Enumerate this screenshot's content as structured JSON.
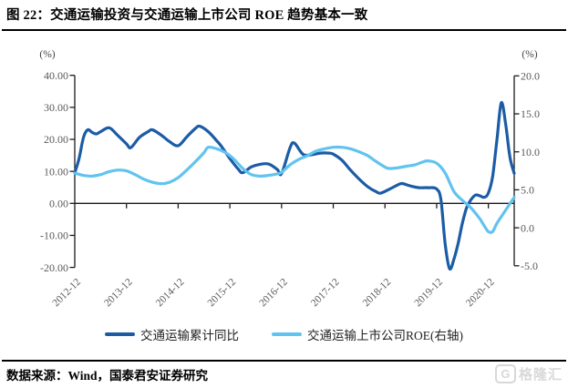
{
  "figure": {
    "title": "图 22：交通运输投资与交通运输上市公司 ROE 趋势基本一致",
    "source": "数据来源：Wind，国泰君安证券研究",
    "watermark": {
      "icon_letter": "G",
      "text": "格隆汇"
    }
  },
  "chart_data": {
    "type": "line",
    "title": "交通运输投资与交通运输上市公司ROE趋势基本一致",
    "legend_position": "bottom",
    "grid": false,
    "x_axis": {
      "tick_labels": [
        "2012-12",
        "2013-12",
        "2014-12",
        "2015-12",
        "2016-12",
        "2017-12",
        "2018-12",
        "2019-12",
        "2020-12"
      ],
      "months_per_tick": 12,
      "total_months": 102,
      "start": "2012-12",
      "end": "2021-06"
    },
    "left_axis": {
      "label": "(%)",
      "ticks": [
        40,
        30,
        20,
        10,
        0,
        -10,
        -20
      ],
      "min": -20,
      "max": 40,
      "decimals": 2
    },
    "right_axis": {
      "label": "(%)",
      "ticks": [
        20,
        15,
        10,
        5,
        0,
        -5
      ],
      "min": -5,
      "max": 20,
      "decimals": 1
    },
    "series": [
      {
        "name": "交通运输累计同比",
        "axis": "left",
        "color": "#1B5CA5",
        "points": [
          [
            0,
            9.6
          ],
          [
            1,
            14.0
          ],
          [
            2,
            20.5
          ],
          [
            3,
            23.0
          ],
          [
            4,
            22.2
          ],
          [
            5,
            21.7
          ],
          [
            6,
            22.4
          ],
          [
            8,
            23.6
          ],
          [
            10,
            21.2
          ],
          [
            12,
            18.6
          ],
          [
            13,
            17.4
          ],
          [
            15,
            20.6
          ],
          [
            17,
            22.4
          ],
          [
            18,
            23.0
          ],
          [
            20,
            21.4
          ],
          [
            22,
            19.3
          ],
          [
            24,
            18.0
          ],
          [
            26,
            20.8
          ],
          [
            28,
            23.4
          ],
          [
            29,
            24.1
          ],
          [
            31,
            22.4
          ],
          [
            33,
            19.5
          ],
          [
            34,
            17.9
          ],
          [
            36,
            14.0
          ],
          [
            38,
            10.6
          ],
          [
            39,
            9.6
          ],
          [
            41,
            11.4
          ],
          [
            43,
            12.2
          ],
          [
            45,
            12.3
          ],
          [
            47,
            10.6
          ],
          [
            48,
            9.3
          ],
          [
            50,
            17.5
          ],
          [
            51,
            18.8
          ],
          [
            53,
            15.3
          ],
          [
            55,
            15.2
          ],
          [
            57,
            15.7
          ],
          [
            59,
            15.7
          ],
          [
            60,
            15.4
          ],
          [
            62,
            13.5
          ],
          [
            64,
            10.4
          ],
          [
            66,
            7.6
          ],
          [
            68,
            5.2
          ],
          [
            70,
            3.6
          ],
          [
            71,
            3.2
          ],
          [
            73,
            4.4
          ],
          [
            75,
            5.8
          ],
          [
            76,
            6.2
          ],
          [
            78,
            5.4
          ],
          [
            80,
            4.9
          ],
          [
            82,
            4.9
          ],
          [
            84,
            4.5
          ],
          [
            85,
            1.0
          ],
          [
            86,
            -13.0
          ],
          [
            87,
            -20.4
          ],
          [
            88,
            -17.5
          ],
          [
            89,
            -12.4
          ],
          [
            90,
            -6.0
          ],
          [
            91,
            -1.2
          ],
          [
            92,
            1.2
          ],
          [
            93,
            2.6
          ],
          [
            94,
            2.4
          ],
          [
            95,
            1.9
          ],
          [
            96,
            3.2
          ],
          [
            97,
            8.5
          ],
          [
            98,
            20.0
          ],
          [
            99,
            31.4
          ],
          [
            100,
            25.0
          ],
          [
            101,
            14.5
          ],
          [
            102,
            9.4
          ]
        ]
      },
      {
        "name": "交通运输上市公司ROE(右轴)",
        "axis": "right",
        "color": "#61C3EF",
        "points": [
          [
            0,
            7.2
          ],
          [
            2,
            6.9
          ],
          [
            4,
            6.8
          ],
          [
            6,
            7.0
          ],
          [
            8,
            7.4
          ],
          [
            10,
            7.6
          ],
          [
            12,
            7.5
          ],
          [
            14,
            7.0
          ],
          [
            16,
            6.4
          ],
          [
            18,
            6.0
          ],
          [
            20,
            5.8
          ],
          [
            22,
            6.0
          ],
          [
            24,
            6.6
          ],
          [
            26,
            7.6
          ],
          [
            28,
            8.7
          ],
          [
            30,
            9.9
          ],
          [
            31,
            10.6
          ],
          [
            33,
            10.4
          ],
          [
            35,
            9.9
          ],
          [
            37,
            9.0
          ],
          [
            39,
            7.8
          ],
          [
            41,
            7.0
          ],
          [
            43,
            6.8
          ],
          [
            45,
            6.9
          ],
          [
            47,
            7.1
          ],
          [
            48,
            7.3
          ],
          [
            50,
            8.3
          ],
          [
            52,
            9.0
          ],
          [
            54,
            9.5
          ],
          [
            56,
            10.1
          ],
          [
            58,
            10.4
          ],
          [
            60,
            10.6
          ],
          [
            62,
            10.6
          ],
          [
            64,
            10.4
          ],
          [
            66,
            10.0
          ],
          [
            68,
            9.5
          ],
          [
            70,
            8.7
          ],
          [
            72,
            8.0
          ],
          [
            73,
            7.8
          ],
          [
            75,
            7.9
          ],
          [
            77,
            8.1
          ],
          [
            79,
            8.3
          ],
          [
            81,
            8.7
          ],
          [
            82,
            8.8
          ],
          [
            84,
            8.5
          ],
          [
            86,
            7.2
          ],
          [
            88,
            4.8
          ],
          [
            90,
            3.6
          ],
          [
            92,
            2.6
          ],
          [
            94,
            1.2
          ],
          [
            95,
            0.3
          ],
          [
            96,
            -0.5
          ],
          [
            97,
            -0.5
          ],
          [
            98,
            0.6
          ],
          [
            100,
            2.3
          ],
          [
            102,
            4.0
          ]
        ]
      }
    ]
  }
}
